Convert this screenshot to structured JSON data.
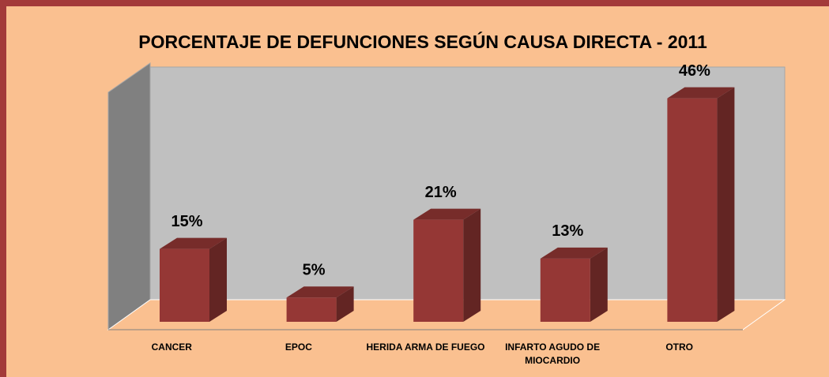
{
  "chart_data": {
    "type": "bar3d",
    "title": "PORCENTAJE DE DEFUNCIONES SEGÚN CAUSA DIRECTA - 2011",
    "categories": [
      "CANCER",
      "EPOC",
      "HERIDA ARMA DE FUEGO",
      "INFARTO AGUDO DE MIOCARDIO",
      "OTRO"
    ],
    "values": [
      15,
      5,
      21,
      13,
      46
    ],
    "value_labels": [
      "15%",
      "5%",
      "21%",
      "13%",
      "46%"
    ],
    "color": "#953735",
    "ylim": [
      0,
      50
    ]
  }
}
